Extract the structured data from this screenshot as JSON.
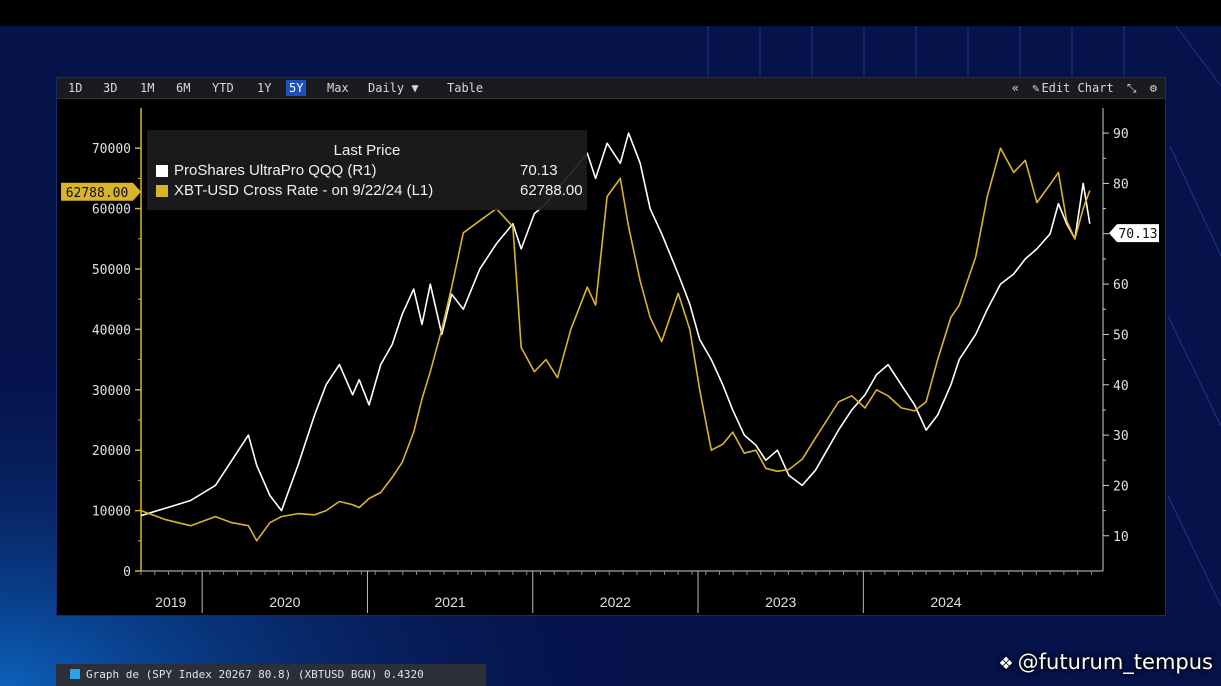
{
  "toolbar": {
    "buttons": [
      "1D",
      "3D",
      "1M",
      "6M",
      "YTD",
      "1Y",
      "5Y",
      "Max",
      "Daily ▼",
      "Table"
    ],
    "active": "5Y",
    "right": {
      "collapse": "«",
      "edit": "Edit Chart",
      "edit_icon": "pencil-icon",
      "zoom_icon": "zoom-icon",
      "settings_icon": "gear-icon"
    }
  },
  "legend": {
    "title": "Last Price",
    "r1_name": "ProShares UltraPro QQQ  (R1)",
    "r1_value": "70.13",
    "l1_name": "XBT-USD Cross Rate -  on 9/22/24  (L1)",
    "l1_value": "62788.00"
  },
  "chart_data": {
    "type": "line",
    "x_labels": [
      "2019",
      "2020",
      "2021",
      "2022",
      "2023",
      "2024"
    ],
    "left_axis": {
      "ticks": [
        0,
        10000,
        20000,
        30000,
        40000,
        50000,
        60000,
        70000
      ],
      "range": [
        0,
        75000
      ],
      "marker": "62788.00"
    },
    "right_axis": {
      "ticks": [
        10,
        20,
        30,
        40,
        50,
        60,
        70,
        80,
        90
      ],
      "range": [
        3,
        93
      ],
      "marker": "70.13"
    },
    "series": [
      {
        "name": "ProShares UltraPro QQQ  (R1)",
        "axis": "right",
        "color": "#ffffff",
        "points": [
          [
            2019.0,
            14
          ],
          [
            2019.15,
            15.5
          ],
          [
            2019.3,
            17
          ],
          [
            2019.45,
            20
          ],
          [
            2019.55,
            25
          ],
          [
            2019.65,
            30
          ],
          [
            2019.7,
            24
          ],
          [
            2019.78,
            18
          ],
          [
            2019.85,
            15
          ],
          [
            2019.95,
            24
          ],
          [
            2020.05,
            34
          ],
          [
            2020.12,
            40
          ],
          [
            2020.2,
            44
          ],
          [
            2020.28,
            38
          ],
          [
            2020.32,
            41
          ],
          [
            2020.38,
            36
          ],
          [
            2020.45,
            44
          ],
          [
            2020.52,
            48
          ],
          [
            2020.58,
            54
          ],
          [
            2020.65,
            59
          ],
          [
            2020.7,
            52
          ],
          [
            2020.75,
            60
          ],
          [
            2020.82,
            50
          ],
          [
            2020.88,
            58
          ],
          [
            2020.95,
            55
          ],
          [
            2021.05,
            63
          ],
          [
            2021.15,
            68
          ],
          [
            2021.25,
            72
          ],
          [
            2021.3,
            67
          ],
          [
            2021.38,
            74
          ],
          [
            2021.45,
            76
          ],
          [
            2021.52,
            79
          ],
          [
            2021.6,
            82
          ],
          [
            2021.7,
            86
          ],
          [
            2021.75,
            81
          ],
          [
            2021.82,
            88
          ],
          [
            2021.9,
            84
          ],
          [
            2021.95,
            90
          ],
          [
            2022.02,
            84
          ],
          [
            2022.08,
            75
          ],
          [
            2022.15,
            70
          ],
          [
            2022.25,
            62
          ],
          [
            2022.32,
            56
          ],
          [
            2022.38,
            49
          ],
          [
            2022.45,
            45
          ],
          [
            2022.52,
            40
          ],
          [
            2022.58,
            35
          ],
          [
            2022.65,
            30
          ],
          [
            2022.72,
            28
          ],
          [
            2022.78,
            25
          ],
          [
            2022.85,
            27
          ],
          [
            2022.92,
            22
          ],
          [
            2023.0,
            20
          ],
          [
            2023.08,
            23
          ],
          [
            2023.15,
            27
          ],
          [
            2023.22,
            31
          ],
          [
            2023.3,
            35
          ],
          [
            2023.38,
            38
          ],
          [
            2023.45,
            42
          ],
          [
            2023.52,
            44
          ],
          [
            2023.6,
            40
          ],
          [
            2023.68,
            36
          ],
          [
            2023.75,
            31
          ],
          [
            2023.82,
            34
          ],
          [
            2023.9,
            40
          ],
          [
            2023.95,
            45
          ],
          [
            2024.05,
            50
          ],
          [
            2024.12,
            55
          ],
          [
            2024.2,
            60
          ],
          [
            2024.28,
            62
          ],
          [
            2024.35,
            65
          ],
          [
            2024.42,
            67
          ],
          [
            2024.5,
            70
          ],
          [
            2024.55,
            76
          ],
          [
            2024.6,
            72
          ],
          [
            2024.65,
            69
          ],
          [
            2024.7,
            80
          ],
          [
            2024.74,
            72
          ]
        ]
      },
      {
        "name": "XBT-USD Cross Rate -  on 9/22/24  (L1)",
        "axis": "left",
        "color": "#d9b42a",
        "points": [
          [
            2019.0,
            10000
          ],
          [
            2019.15,
            8500
          ],
          [
            2019.3,
            7500
          ],
          [
            2019.45,
            9000
          ],
          [
            2019.55,
            8000
          ],
          [
            2019.65,
            7500
          ],
          [
            2019.7,
            5000
          ],
          [
            2019.78,
            8000
          ],
          [
            2019.85,
            9000
          ],
          [
            2019.95,
            9500
          ],
          [
            2020.05,
            9300
          ],
          [
            2020.12,
            10000
          ],
          [
            2020.2,
            11500
          ],
          [
            2020.28,
            11000
          ],
          [
            2020.32,
            10500
          ],
          [
            2020.38,
            12000
          ],
          [
            2020.45,
            13000
          ],
          [
            2020.52,
            15500
          ],
          [
            2020.58,
            18000
          ],
          [
            2020.65,
            23000
          ],
          [
            2020.7,
            28500
          ],
          [
            2020.75,
            33000
          ],
          [
            2020.82,
            40000
          ],
          [
            2020.88,
            47000
          ],
          [
            2020.95,
            56000
          ],
          [
            2021.05,
            58000
          ],
          [
            2021.15,
            60000
          ],
          [
            2021.25,
            57000
          ],
          [
            2021.3,
            37000
          ],
          [
            2021.38,
            33000
          ],
          [
            2021.45,
            35000
          ],
          [
            2021.52,
            32000
          ],
          [
            2021.6,
            40000
          ],
          [
            2021.7,
            47000
          ],
          [
            2021.75,
            44000
          ],
          [
            2021.82,
            62000
          ],
          [
            2021.9,
            65000
          ],
          [
            2021.95,
            57000
          ],
          [
            2022.02,
            48000
          ],
          [
            2022.08,
            42000
          ],
          [
            2022.15,
            38000
          ],
          [
            2022.25,
            46000
          ],
          [
            2022.32,
            40000
          ],
          [
            2022.38,
            30000
          ],
          [
            2022.45,
            20000
          ],
          [
            2022.52,
            21000
          ],
          [
            2022.58,
            23000
          ],
          [
            2022.65,
            19500
          ],
          [
            2022.72,
            20000
          ],
          [
            2022.78,
            17000
          ],
          [
            2022.85,
            16500
          ],
          [
            2022.92,
            16800
          ],
          [
            2023.0,
            18500
          ],
          [
            2023.08,
            22000
          ],
          [
            2023.15,
            25000
          ],
          [
            2023.22,
            28000
          ],
          [
            2023.3,
            29000
          ],
          [
            2023.38,
            27000
          ],
          [
            2023.45,
            30000
          ],
          [
            2023.52,
            29000
          ],
          [
            2023.6,
            27000
          ],
          [
            2023.68,
            26500
          ],
          [
            2023.75,
            28000
          ],
          [
            2023.82,
            35000
          ],
          [
            2023.9,
            42000
          ],
          [
            2023.95,
            44000
          ],
          [
            2024.05,
            52000
          ],
          [
            2024.12,
            62000
          ],
          [
            2024.2,
            70000
          ],
          [
            2024.28,
            66000
          ],
          [
            2024.35,
            68000
          ],
          [
            2024.42,
            61000
          ],
          [
            2024.5,
            64000
          ],
          [
            2024.55,
            66000
          ],
          [
            2024.6,
            58000
          ],
          [
            2024.65,
            55000
          ],
          [
            2024.7,
            60000
          ],
          [
            2024.74,
            63000
          ]
        ]
      }
    ]
  },
  "bottom_strip": {
    "text": "Graph de (SPY Index  20267 80.8)  (XBTUSD BGN)  0.4320"
  },
  "watermark": {
    "text": "@futurum_tempus",
    "icon": "binance-logo-icon"
  }
}
